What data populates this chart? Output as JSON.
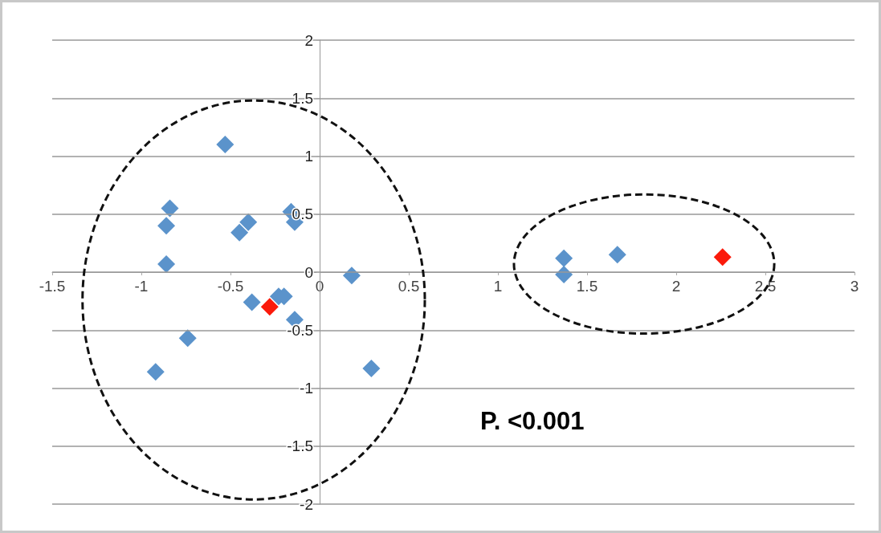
{
  "chart_data": {
    "type": "scatter",
    "marker": "diamond",
    "grid": "y",
    "xlim": [
      -1.5,
      3
    ],
    "xticks": [
      -1.5,
      -1,
      -0.5,
      0,
      0.5,
      1,
      1.5,
      2,
      2.5,
      3
    ],
    "ylim": [
      -2,
      2
    ],
    "yticks": [
      -2,
      -1.5,
      -1,
      -0.5,
      0,
      0.5,
      1,
      1.5,
      2
    ],
    "annotations": [
      "P. <0.001"
    ],
    "series": [
      {
        "color": "#5b93cb",
        "x": [
          -0.53,
          -0.84,
          -0.86,
          -0.86,
          -0.45,
          -0.4,
          -0.16,
          -0.14,
          0.18,
          -0.38,
          -0.23,
          -0.2,
          -0.14,
          -0.74,
          -0.92,
          0.29,
          1.37,
          1.37,
          1.67
        ],
        "values": [
          1.1,
          0.55,
          0.4,
          0.07,
          0.34,
          0.43,
          0.52,
          0.43,
          -0.03,
          -0.26,
          -0.21,
          -0.21,
          -0.41,
          -0.57,
          -0.86,
          -0.83,
          0.12,
          -0.02,
          0.15
        ]
      },
      {
        "color": "#fb1a0b",
        "x": [
          -0.28,
          2.26
        ],
        "values": [
          -0.3,
          0.13
        ]
      }
    ]
  }
}
